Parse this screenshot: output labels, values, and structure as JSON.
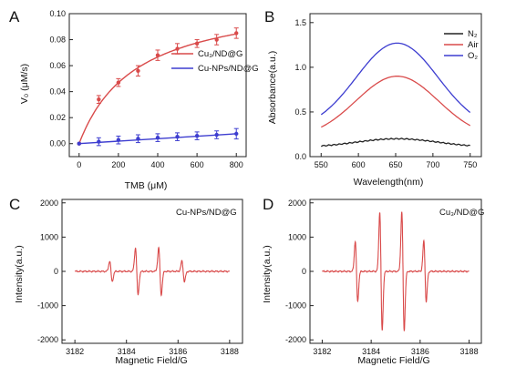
{
  "chart_data": [
    {
      "panel_label": "A",
      "type": "line",
      "xlabel": "TMB (μM)",
      "ylabel": "V₀ (μM/s)",
      "xlim": [
        -50,
        850
      ],
      "ylim": [
        -0.01,
        0.1
      ],
      "xticks": [
        0,
        200,
        400,
        600,
        800
      ],
      "yticks": [
        0.0,
        0.02,
        0.04,
        0.06,
        0.08,
        0.1
      ],
      "legend_position": "right",
      "series": [
        {
          "name": "Cu₃/ND@G",
          "color": "#d94a4a",
          "x": [
            0,
            100,
            200,
            300,
            400,
            500,
            600,
            700,
            800
          ],
          "y": [
            0.0,
            0.034,
            0.047,
            0.056,
            0.068,
            0.073,
            0.077,
            0.08,
            0.085
          ],
          "err": [
            0,
            0.003,
            0.003,
            0.004,
            0.004,
            0.004,
            0.003,
            0.004,
            0.004
          ]
        },
        {
          "name": "Cu-NPs/ND@G",
          "color": "#3d3dd0",
          "x": [
            0,
            100,
            200,
            300,
            400,
            500,
            600,
            700,
            800
          ],
          "y": [
            0.0,
            0.0015,
            0.0028,
            0.0038,
            0.0046,
            0.0053,
            0.006,
            0.0068,
            0.0076
          ],
          "err": [
            0,
            0.003,
            0.003,
            0.003,
            0.003,
            0.003,
            0.003,
            0.003,
            0.004
          ]
        }
      ]
    },
    {
      "panel_label": "B",
      "type": "line",
      "xlabel": "Wavelength(nm)",
      "ylabel": "Absorbance(a.u.)",
      "xlim": [
        535,
        765
      ],
      "ylim": [
        0.0,
        1.6
      ],
      "xticks": [
        550,
        600,
        650,
        700,
        750
      ],
      "yticks": [
        0.0,
        0.5,
        1.0,
        1.5
      ],
      "legend_position": "top-right",
      "series": [
        {
          "name": "N₂",
          "color": "#222222",
          "peak_x": 652,
          "peak_y": 0.2,
          "base_y": 0.12
        },
        {
          "name": "Air",
          "color": "#d94a4a",
          "peak_x": 652,
          "peak_y": 0.9,
          "base_y": 0.33
        },
        {
          "name": "O₂",
          "color": "#3d3dd0",
          "peak_x": 652,
          "peak_y": 1.27,
          "base_y": 0.47
        }
      ]
    },
    {
      "panel_label": "C",
      "type": "line",
      "title": "Cu-NPs/ND@G",
      "xlabel": "Magnetic Field/G",
      "ylabel": "Intensity(a.u.)",
      "xlim": [
        3181.5,
        3188.5
      ],
      "ylim": [
        -2100,
        2100
      ],
      "xticks": [
        3182,
        3184,
        3186,
        3188
      ],
      "yticks": [
        -2000,
        -1000,
        0,
        1000,
        2000
      ],
      "series": [
        {
          "name": "",
          "color": "#d94a4a",
          "lines": [
            {
              "x": 3183.4,
              "amp": 300
            },
            {
              "x": 3184.4,
              "amp": 680
            },
            {
              "x": 3185.3,
              "amp": 680
            },
            {
              "x": 3186.2,
              "amp": 300
            }
          ]
        }
      ]
    },
    {
      "panel_label": "D",
      "type": "line",
      "title": "Cu₃/ND@G",
      "xlabel": "Magnetic Field/G",
      "ylabel": "Intensity(a.u.)",
      "xlim": [
        3181.5,
        3188.5
      ],
      "ylim": [
        -2100,
        2100
      ],
      "xticks": [
        3182,
        3184,
        3186,
        3188
      ],
      "yticks": [
        -2000,
        -1000,
        0,
        1000,
        2000
      ],
      "series": [
        {
          "name": "",
          "color": "#d94a4a",
          "lines": [
            {
              "x": 3183.4,
              "amp": 880
            },
            {
              "x": 3184.4,
              "amp": 1720
            },
            {
              "x": 3185.3,
              "amp": 1720
            },
            {
              "x": 3186.2,
              "amp": 880
            }
          ]
        }
      ]
    }
  ]
}
